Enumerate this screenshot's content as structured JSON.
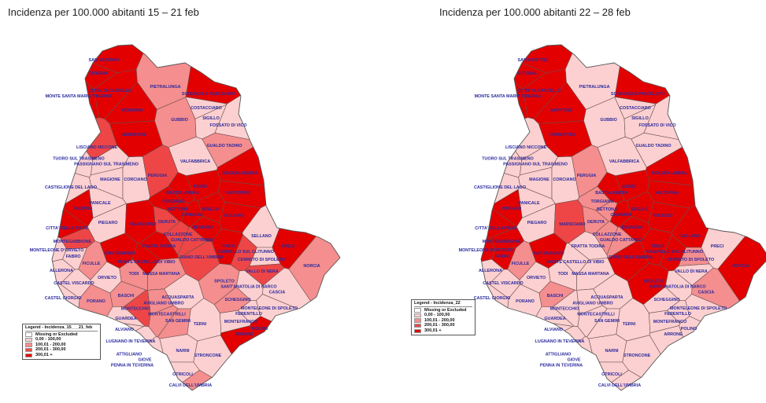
{
  "maps": [
    {
      "title": "Incidenza per 100.000 abitanti 15 – 21 feb",
      "legend_title": "Legend - Incidenza_15___21_feb"
    },
    {
      "title": "Incidenza per 100.000 abitanti 22 – 28 feb",
      "legend_title": "Legend - Incidenza_22"
    }
  ],
  "legend_classes": [
    {
      "label": "Missing or Excluded",
      "color": "#ffffff"
    },
    {
      "label": "0,00 - 100,00",
      "color": "#fcd0d0"
    },
    {
      "label": "100,01 - 200,00",
      "color": "#f58e8e"
    },
    {
      "label": "200,01 - 300,00",
      "color": "#ee4646"
    },
    {
      "label": "300,01 +",
      "color": "#e30000"
    }
  ],
  "municipalities": [
    {
      "name": "SAN GIUSTINO",
      "c": [
        4,
        4
      ]
    },
    {
      "name": "CITERNA",
      "c": [
        4,
        4
      ]
    },
    {
      "name": "CITTA' DI CASTELLO",
      "c": [
        4,
        4
      ]
    },
    {
      "name": "MONTE SANTA MARIA TIBERINA",
      "c": [
        4,
        4
      ]
    },
    {
      "name": "PIETRALUNGA",
      "c": [
        2,
        1
      ]
    },
    {
      "name": "MONTONE",
      "c": [
        4,
        4
      ]
    },
    {
      "name": "UMBERTIDE",
      "c": [
        4,
        4
      ]
    },
    {
      "name": "GUBBIO",
      "c": [
        2,
        1
      ]
    },
    {
      "name": "SCHEGGIA E PASCELUPO",
      "c": [
        4,
        4
      ]
    },
    {
      "name": "COSTACCIARO",
      "c": [
        1,
        1
      ]
    },
    {
      "name": "SIGILLO",
      "c": [
        1,
        1
      ]
    },
    {
      "name": "FOSSATO DI VICO",
      "c": [
        1,
        1
      ]
    },
    {
      "name": "GUALDO TADINO",
      "c": [
        2,
        1
      ]
    },
    {
      "name": "LISCIANO NICCONE",
      "c": [
        3,
        1
      ]
    },
    {
      "name": "TUORO SUL TRASIMENO",
      "c": [
        1,
        1
      ]
    },
    {
      "name": "PASSIGNANO SUL TRASIMENO",
      "c": [
        1,
        1
      ]
    },
    {
      "name": "VALFABBRICA",
      "c": [
        1,
        1
      ]
    },
    {
      "name": "PERUGIA",
      "c": [
        3,
        2
      ]
    },
    {
      "name": "NOCERA UMBRA",
      "c": [
        4,
        4
      ]
    },
    {
      "name": "CASTIGLIONE DEL LAGO",
      "c": [
        1,
        1
      ]
    },
    {
      "name": "MAGIONE",
      "c": [
        1,
        1
      ]
    },
    {
      "name": "CORCIANO",
      "c": [
        1,
        1
      ]
    },
    {
      "name": "ASSISI",
      "c": [
        4,
        4
      ]
    },
    {
      "name": "BASTIA UMBRA",
      "c": [
        4,
        4
      ]
    },
    {
      "name": "VALTOPINA",
      "c": [
        4,
        4
      ]
    },
    {
      "name": "TORGIANO",
      "c": [
        4,
        2
      ]
    },
    {
      "name": "PANICALE",
      "c": [
        1,
        1
      ]
    },
    {
      "name": "PACIANO",
      "c": [
        4,
        4
      ]
    },
    {
      "name": "BETTONA",
      "c": [
        4,
        2
      ]
    },
    {
      "name": "SPELLO",
      "c": [
        4,
        4
      ]
    },
    {
      "name": "CANNARA",
      "c": [
        4,
        4
      ]
    },
    {
      "name": "FOLIGNO",
      "c": [
        4,
        4
      ]
    },
    {
      "name": "DERUTA",
      "c": [
        3,
        2
      ]
    },
    {
      "name": "PIEGARO",
      "c": [
        1,
        1
      ]
    },
    {
      "name": "MARSCIANO",
      "c": [
        4,
        3
      ]
    },
    {
      "name": "BEVAGNA",
      "c": [
        4,
        4
      ]
    },
    {
      "name": "CITTA' DELLA PIEVE",
      "c": [
        4,
        4
      ]
    },
    {
      "name": "COLLAZZONE",
      "c": [
        3,
        2
      ]
    },
    {
      "name": "GUALDO CATTANEO",
      "c": [
        3,
        2
      ]
    },
    {
      "name": "SELLANO",
      "c": [
        1,
        4
      ]
    },
    {
      "name": "PRECI",
      "c": [
        4,
        1
      ]
    },
    {
      "name": "MONTEGABBIONE",
      "c": [
        3,
        4
      ]
    },
    {
      "name": "TREVI",
      "c": [
        4,
        4
      ]
    },
    {
      "name": "FRATTA TODINA",
      "c": [
        4,
        1
      ]
    },
    {
      "name": "MONTELEONE D'ORVIETO",
      "c": [
        1,
        4
      ]
    },
    {
      "name": "FABRO",
      "c": [
        1,
        4
      ]
    },
    {
      "name": "SAN VENANZO",
      "c": [
        4,
        4
      ]
    },
    {
      "name": "CAMPELLO SUL CLITUNNO",
      "c": [
        3,
        4
      ]
    },
    {
      "name": "GIANO DELL'UMBRIA",
      "c": [
        3,
        4
      ]
    },
    {
      "name": "MONTE CASTELLO DI VIBIO",
      "c": [
        4,
        1
      ]
    },
    {
      "name": "CERRETO DI SPOLETO",
      "c": [
        1,
        2
      ]
    },
    {
      "name": "FICULLE",
      "c": [
        2,
        2
      ]
    },
    {
      "name": "ALLERONA",
      "c": [
        1,
        1
      ]
    },
    {
      "name": "TODI",
      "c": [
        2,
        1
      ]
    },
    {
      "name": "MASSA MARTANA",
      "c": [
        2,
        1
      ]
    },
    {
      "name": "VALLO DI NERA",
      "c": [
        3,
        1
      ]
    },
    {
      "name": "NORCIA",
      "c": [
        2,
        4
      ]
    },
    {
      "name": "SPOLETO",
      "c": [
        2,
        4
      ]
    },
    {
      "name": "SANT'ANATOLIA DI NARCO",
      "c": [
        1,
        1
      ]
    },
    {
      "name": "CASTEL VISCARDO",
      "c": [
        1,
        1
      ]
    },
    {
      "name": "ORVIETO",
      "c": [
        1,
        1
      ]
    },
    {
      "name": "CASCIA",
      "c": [
        1,
        2
      ]
    },
    {
      "name": "BASCHI",
      "c": [
        2,
        2
      ]
    },
    {
      "name": "ACQUASPARTA",
      "c": [
        1,
        1
      ]
    },
    {
      "name": "SCHEGGINO",
      "c": [
        2,
        1
      ]
    },
    {
      "name": "CASTEL GIORGIO",
      "c": [
        1,
        1
      ]
    },
    {
      "name": "PORANO",
      "c": [
        2,
        1
      ]
    },
    {
      "name": "MONTECCHIO",
      "c": [
        3,
        1
      ]
    },
    {
      "name": "AVIGLIANO UMBRO",
      "c": [
        2,
        1
      ]
    },
    {
      "name": "MONTECASTRILLI",
      "c": [
        2,
        1
      ]
    },
    {
      "name": "MONTELEONE DI SPOLETO",
      "c": [
        1,
        1
      ]
    },
    {
      "name": "FERENTILLO",
      "c": [
        1,
        1
      ]
    },
    {
      "name": "GUARDEA",
      "c": [
        1,
        1
      ]
    },
    {
      "name": "SAN GEMINI",
      "c": [
        2,
        1
      ]
    },
    {
      "name": "MONTEFRANCO",
      "c": [
        1,
        1
      ]
    },
    {
      "name": "TERNI",
      "c": [
        1,
        1
      ]
    },
    {
      "name": "ARRONE",
      "c": [
        4,
        1
      ]
    },
    {
      "name": "POLINO",
      "c": [
        4,
        1
      ]
    },
    {
      "name": "ALVIANO",
      "c": [
        1,
        1
      ]
    },
    {
      "name": "LUGNANO IN TEVERINA",
      "c": [
        1,
        1
      ]
    },
    {
      "name": "ATTIGLIANO",
      "c": [
        1,
        1
      ]
    },
    {
      "name": "GIOVE",
      "c": [
        1,
        1
      ]
    },
    {
      "name": "PENNA IN TEVERINA",
      "c": [
        1,
        1
      ]
    },
    {
      "name": "NARNI",
      "c": [
        1,
        1
      ]
    },
    {
      "name": "STRONCONE",
      "c": [
        1,
        1
      ]
    },
    {
      "name": "OTRICOLI",
      "c": [
        1,
        1
      ]
    },
    {
      "name": "CALVI DELL'UMBRIA",
      "c": [
        2,
        1
      ]
    }
  ]
}
